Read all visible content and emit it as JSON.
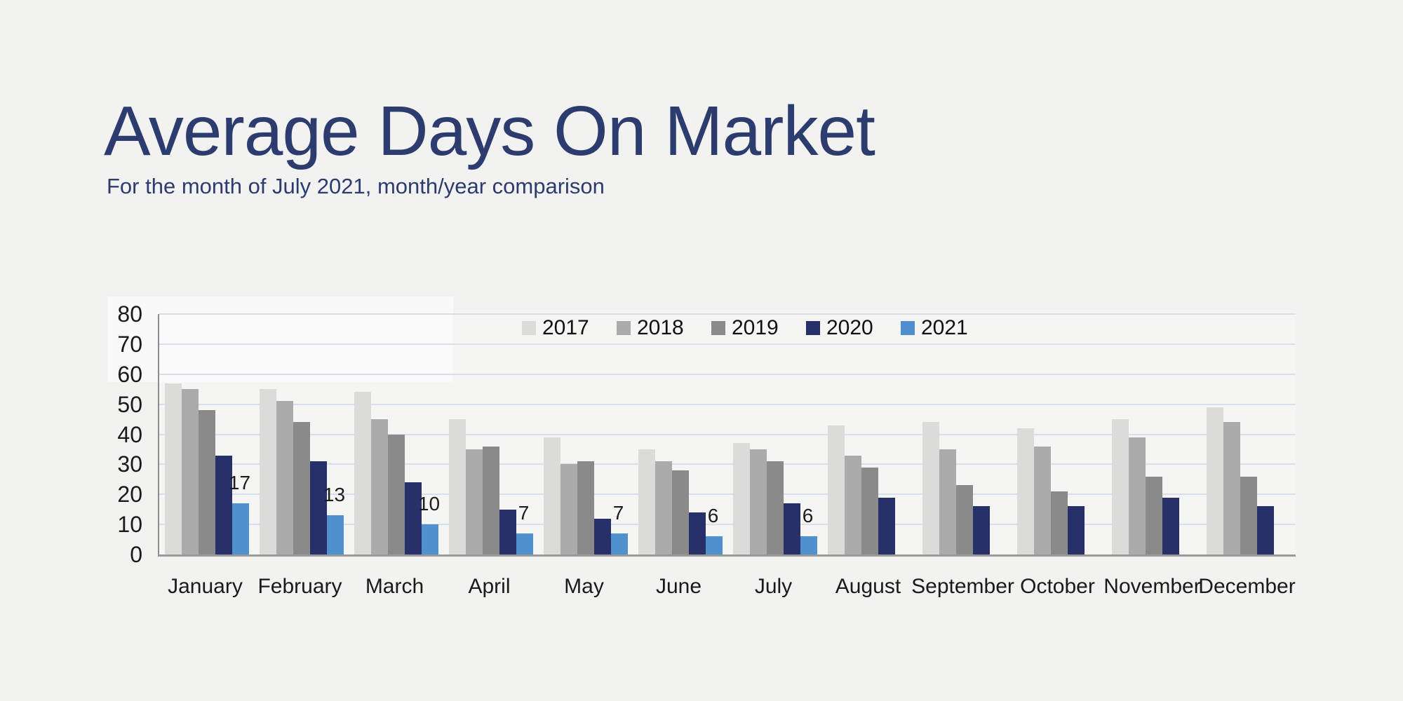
{
  "page": {
    "background": "#f2f2f1"
  },
  "header": {
    "title": "Average Days On Market",
    "subtitle": "For the month of July 2021, month/year comparison",
    "title_color": "#2d3c6e"
  },
  "chart_data": {
    "type": "bar",
    "title": "Average Days On Market",
    "subtitle": "For the month of July 2021, month/year comparison",
    "categories": [
      "January",
      "February",
      "March",
      "April",
      "May",
      "June",
      "July",
      "August",
      "September",
      "October",
      "November",
      "December"
    ],
    "series": [
      {
        "name": "2017",
        "color": "#dbdbda",
        "values": [
          57,
          55,
          54,
          45,
          39,
          35,
          37,
          43,
          44,
          42,
          45,
          49
        ]
      },
      {
        "name": "2018",
        "color": "#ababab",
        "values": [
          55,
          51,
          45,
          35,
          30,
          31,
          35,
          33,
          35,
          36,
          39,
          44
        ]
      },
      {
        "name": "2019",
        "color": "#8a8a8a",
        "values": [
          48,
          44,
          40,
          36,
          31,
          28,
          31,
          29,
          23,
          21,
          26,
          26
        ]
      },
      {
        "name": "2020",
        "color": "#273069",
        "values": [
          33,
          31,
          24,
          15,
          12,
          14,
          17,
          19,
          16,
          16,
          19,
          16
        ]
      },
      {
        "name": "2021",
        "color": "#4f90ce",
        "values": [
          17,
          13,
          10,
          7,
          7,
          6,
          6,
          null,
          null,
          null,
          null,
          null
        ]
      }
    ],
    "data_labels_series": "2021",
    "data_labels": [
      "17",
      "13",
      "10",
      "7",
      "7",
      "6",
      "6"
    ],
    "xlabel": "",
    "ylabel": "",
    "ylim": [
      0,
      80
    ],
    "yticks": [
      0,
      10,
      20,
      30,
      40,
      50,
      60,
      70,
      80
    ],
    "grid": true,
    "gridline_color": "#d9dded",
    "axis_line_color": "#9a9a9a",
    "legend_position": "top",
    "legend_labels": [
      "2017",
      "2018",
      "2019",
      "2020",
      "2021"
    ]
  }
}
